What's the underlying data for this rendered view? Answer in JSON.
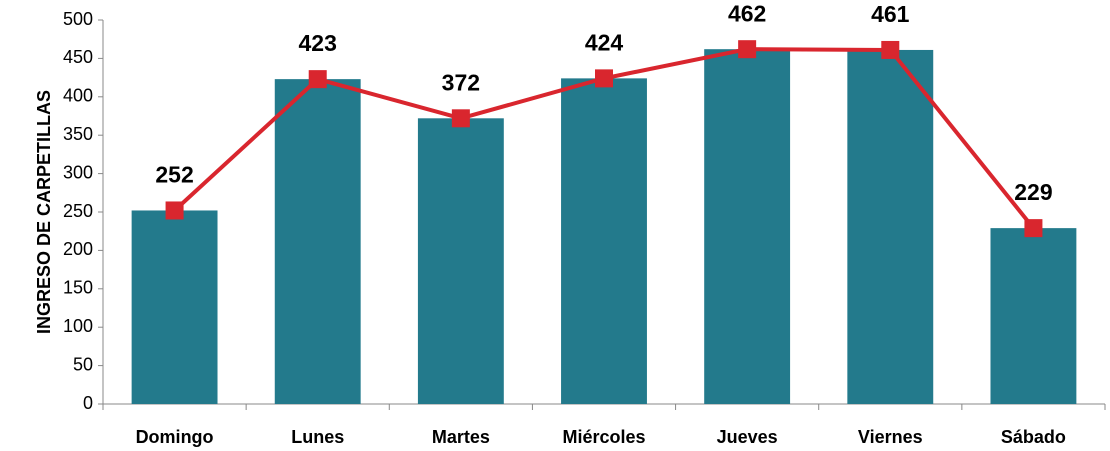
{
  "chart_data": {
    "type": "bar",
    "y_label": "INGRESO DE CARPETILLAS",
    "categories": [
      "Domingo",
      "Lunes",
      "Martes",
      "Miércoles",
      "Jueves",
      "Viernes",
      "Sábado"
    ],
    "series": [
      {
        "type": "bar",
        "color": "#237a8c",
        "values": [
          252,
          423,
          372,
          424,
          462,
          461,
          229
        ]
      },
      {
        "type": "line",
        "color": "#d9262e",
        "values": [
          252,
          423,
          372,
          424,
          462,
          461,
          229
        ]
      }
    ],
    "ylim": [
      0,
      500
    ],
    "yticks": [
      0,
      50,
      100,
      150,
      200,
      250,
      300,
      350,
      400,
      450,
      500
    ],
    "grid": false
  }
}
